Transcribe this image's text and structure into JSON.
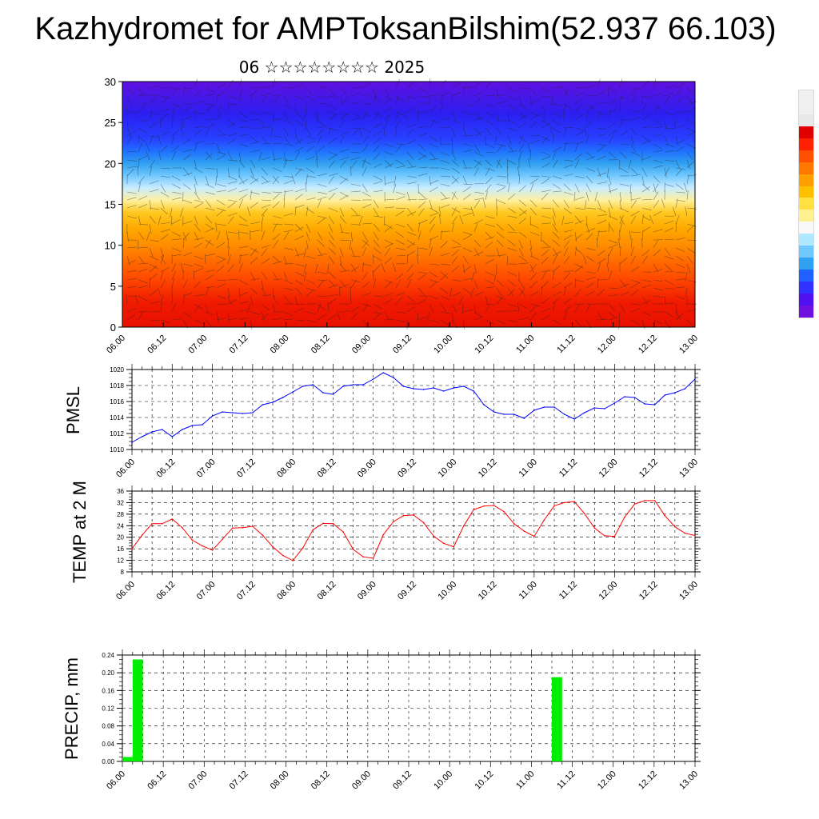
{
  "title": "Kazhydromet for AMPToksanBilshim(52.937 66.103)",
  "subtitle": "06 ☆☆☆☆☆☆☆☆ 2025",
  "colorbar_colors": [
    "#f0f0f0",
    "#f0f0f0",
    "#e8e8e8",
    "#e00000",
    "#ff2000",
    "#ff5000",
    "#ff7800",
    "#ffa000",
    "#ffc000",
    "#ffe040",
    "#fff090",
    "#f8f8f8",
    "#b0e8ff",
    "#70c8ff",
    "#30a0f0",
    "#2060ff",
    "#3030ff",
    "#5010f0",
    "#7010e0"
  ],
  "chart_data": [
    {
      "type": "heatmap",
      "ylim": [
        0,
        30
      ],
      "yticks": [
        0,
        5,
        10,
        15,
        20,
        25,
        30
      ],
      "x_ticks": [
        "06.00",
        "06.12",
        "07.00",
        "07.12",
        "08.00",
        "08.12",
        "09.00",
        "09.12",
        "10.00",
        "10.12",
        "11.00",
        "11.12",
        "12.00",
        "12.12",
        "13.00"
      ],
      "vertical_profile_rows": [
        {
          "level": 0,
          "color": "#e81000"
        },
        {
          "level": 3,
          "color": "#f01a00"
        },
        {
          "level": 6,
          "color": "#ff4a00"
        },
        {
          "level": 8,
          "color": "#ff6a00"
        },
        {
          "level": 10,
          "color": "#ff8c00"
        },
        {
          "level": 12,
          "color": "#ffa800"
        },
        {
          "level": 14,
          "color": "#ffc820"
        },
        {
          "level": 15.5,
          "color": "#fff0a0"
        },
        {
          "level": 17,
          "color": "#c8ecff"
        },
        {
          "level": 18.5,
          "color": "#70c8ff"
        },
        {
          "level": 20,
          "color": "#30a0f0"
        },
        {
          "level": 21.5,
          "color": "#2070ff"
        },
        {
          "level": 23,
          "color": "#2840ff"
        },
        {
          "level": 26,
          "color": "#2a20f0"
        },
        {
          "level": 30,
          "color": "#6010e0"
        }
      ]
    },
    {
      "type": "line",
      "ylabel": "PMSL",
      "ylim": [
        1010,
        1020
      ],
      "yticks": [
        1010,
        1012,
        1014,
        1016,
        1018,
        1020
      ],
      "x_ticks": [
        "06.00",
        "06.12",
        "07.00",
        "07.12",
        "08.00",
        "08.12",
        "09.00",
        "09.12",
        "10.00",
        "10.12",
        "11.00",
        "11.12",
        "12.00",
        "12.12",
        "13.00"
      ],
      "color": "#0000ff",
      "series": [
        {
          "values": [
            1010.9,
            1011.6,
            1012.2,
            1012.5,
            1011.6,
            1012.5,
            1013.0,
            1013.1,
            1014.2,
            1014.7,
            1014.6,
            1014.5,
            1014.6,
            1015.6,
            1015.9,
            1016.5,
            1017.2,
            1017.9,
            1018.1,
            1017.1,
            1016.9,
            1017.9,
            1018.1,
            1018.1,
            1018.8,
            1019.6,
            1019.0,
            1017.9,
            1017.6,
            1017.5,
            1017.7,
            1017.3,
            1017.7,
            1017.9,
            1017.3,
            1015.6,
            1014.7,
            1014.4,
            1014.4,
            1013.9,
            1014.9,
            1015.3,
            1015.3,
            1014.4,
            1013.8,
            1014.6,
            1015.2,
            1015.1,
            1015.8,
            1016.6,
            1016.5,
            1015.7,
            1015.6,
            1016.8,
            1017.1,
            1017.6,
            1018.8
          ]
        }
      ]
    },
    {
      "type": "line",
      "ylabel": "TEMP at 2 M",
      "ylim": [
        8,
        36
      ],
      "yticks": [
        8,
        12,
        16,
        20,
        24,
        28,
        32,
        36
      ],
      "x_ticks": [
        "06.00",
        "06.12",
        "07.00",
        "07.12",
        "08.00",
        "08.12",
        "09.00",
        "09.12",
        "10.00",
        "10.12",
        "11.00",
        "11.12",
        "12.00",
        "12.12",
        "13.00"
      ],
      "color": "#ff0000",
      "series": [
        {
          "values": [
            16.0,
            20.7,
            24.7,
            24.7,
            26.3,
            23.3,
            19.0,
            17.0,
            15.5,
            19.3,
            23.2,
            23.3,
            23.8,
            20.7,
            16.7,
            13.7,
            11.9,
            16.3,
            22.6,
            24.8,
            24.7,
            21.9,
            15.8,
            13.2,
            12.7,
            20.9,
            25.4,
            27.5,
            27.7,
            25.1,
            20.4,
            17.9,
            16.7,
            24.0,
            29.6,
            30.8,
            31.0,
            28.9,
            24.7,
            22.1,
            20.3,
            26.0,
            30.9,
            32.0,
            32.4,
            28.2,
            23.2,
            20.5,
            20.3,
            27.0,
            31.5,
            32.7,
            32.7,
            27.5,
            23.6,
            21.4,
            20.6
          ]
        }
      ]
    },
    {
      "type": "bar",
      "ylabel": "PRECIP, mm",
      "ylim": [
        0,
        0.24
      ],
      "yticks": [
        "0.00",
        "0.04",
        "0.08",
        "0.12",
        "0.16",
        "0.20",
        "0.24"
      ],
      "x_ticks": [
        "06.00",
        "06.12",
        "07.00",
        "07.12",
        "08.00",
        "08.12",
        "09.00",
        "09.12",
        "10.00",
        "10.12",
        "11.00",
        "11.12",
        "12.00",
        "12.12",
        "13.00"
      ],
      "color": "#00ee00",
      "bars": [
        {
          "x_hours": 3,
          "value": 0.01
        },
        {
          "x_hours": 6,
          "value": 0.23
        },
        {
          "x_hours": 129,
          "value": 0.19
        }
      ]
    }
  ]
}
